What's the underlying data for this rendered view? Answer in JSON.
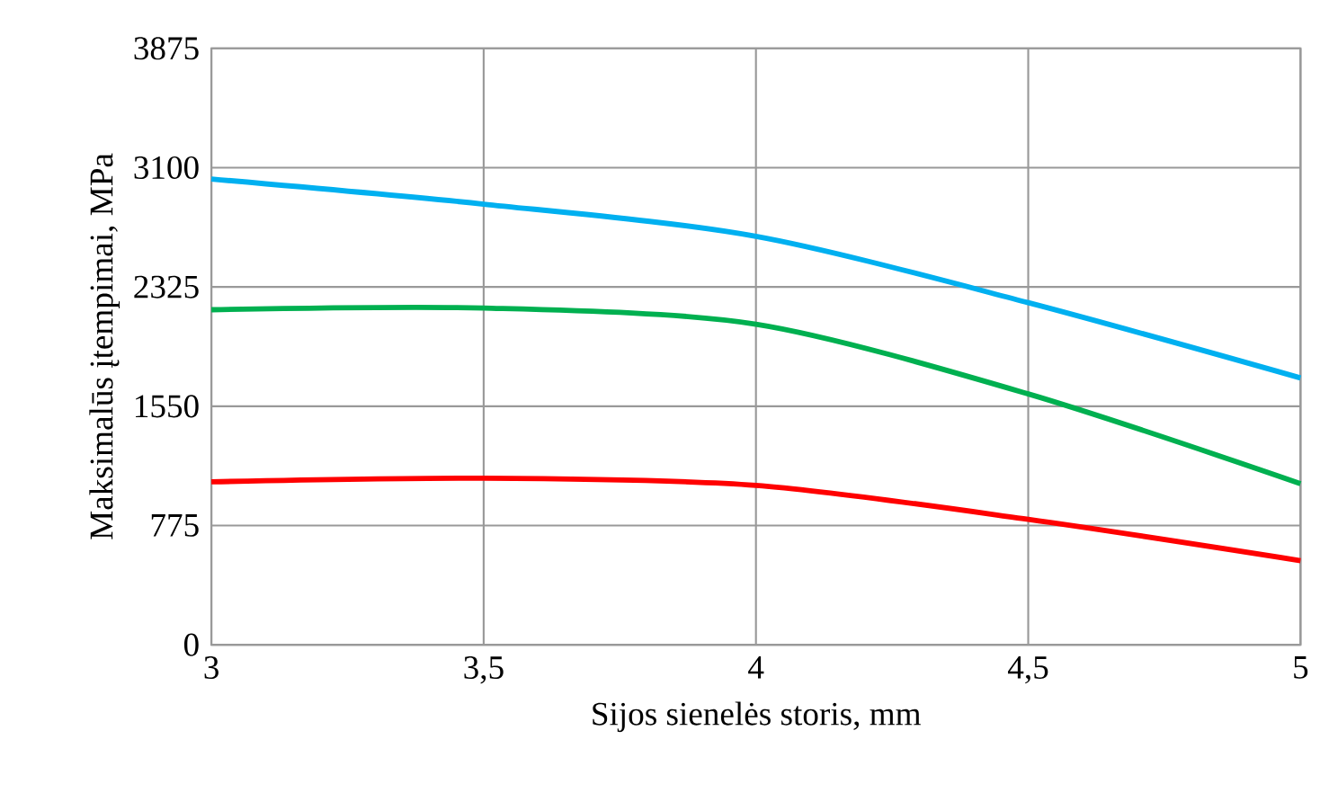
{
  "chart_data": {
    "type": "line",
    "xlabel": "Sijos sienelės storis, mm",
    "ylabel": "Maksimalūs įtempimai, MPa",
    "x": [
      3,
      3.5,
      4,
      4.5,
      5
    ],
    "series": [
      {
        "color": "#00b0f0",
        "values": [
          3026,
          2863,
          2654,
          2223,
          1734
        ]
      },
      {
        "color": "#00b050",
        "values": [
          2177,
          2188,
          2083,
          1630,
          1047
        ]
      },
      {
        "color": "#ff0000",
        "values": [
          1059,
          1082,
          1036,
          815,
          547
        ]
      }
    ],
    "xlim": [
      3,
      5
    ],
    "ylim": [
      0,
      3875
    ],
    "xticks": [
      3,
      {
        "value": 3.5,
        "label": "3,5"
      },
      4,
      {
        "value": 4.5,
        "label": "4,5"
      },
      5
    ],
    "yticks": [
      0,
      775,
      1550,
      2325,
      3100,
      3875
    ],
    "grid": true
  }
}
